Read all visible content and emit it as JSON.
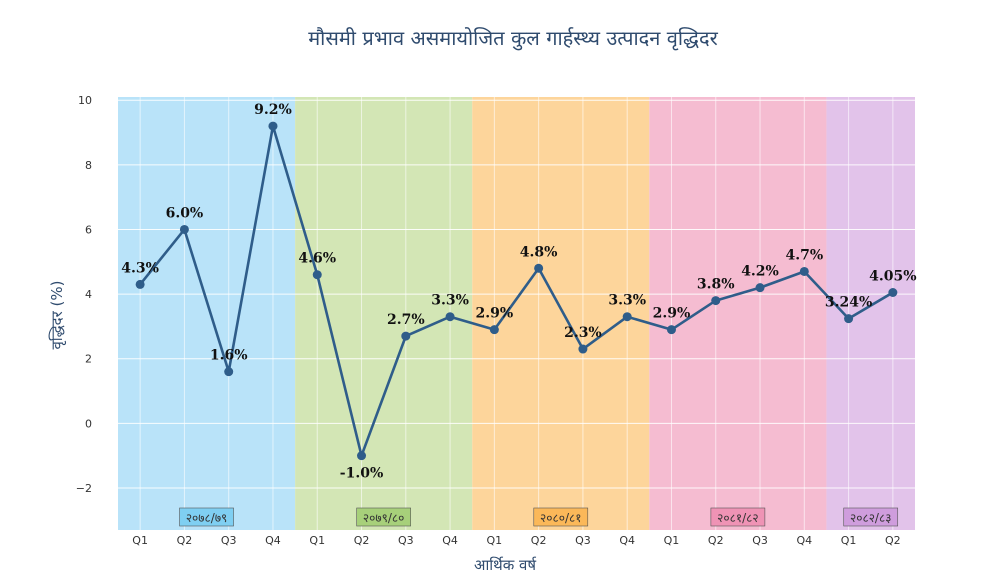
{
  "chart_data": {
    "type": "line",
    "title": "मौसमी प्रभाव असमायोजित कुल गार्हस्थ्य उत्पादन वृद्धिदर",
    "xlabel": "आर्थिक वर्ष",
    "ylabel": "वृद्धिदर (%)",
    "ylim": [
      -3.3,
      10.1
    ],
    "yticks": [
      -2,
      0,
      2,
      4,
      6,
      8,
      10
    ],
    "grid": true,
    "categories": [
      "Q1",
      "Q2",
      "Q3",
      "Q4",
      "Q1",
      "Q2",
      "Q3",
      "Q4",
      "Q1",
      "Q2",
      "Q3",
      "Q4",
      "Q1",
      "Q2",
      "Q3",
      "Q4",
      "Q1",
      "Q2"
    ],
    "series": [
      {
        "values": [
          4.3,
          6.0,
          1.6,
          9.2,
          4.6,
          -1.0,
          2.7,
          3.3,
          2.9,
          4.8,
          2.3,
          3.3,
          2.9,
          3.8,
          4.2,
          4.7,
          3.24,
          4.05
        ],
        "labels": [
          "4.3%",
          "6.0%",
          "1.6%",
          "9.2%",
          "4.6%",
          "-1.0%",
          "2.7%",
          "3.3%",
          "2.9%",
          "4.8%",
          "2.3%",
          "3.3%",
          "2.9%",
          "3.8%",
          "4.2%",
          "4.7%",
          "3.24%",
          "4.05%"
        ],
        "color": "#2f5d8a"
      }
    ],
    "fiscal_years": [
      {
        "label": "२०७८/७९",
        "start": 0,
        "end": 3,
        "bg": "#b9e3f9",
        "tag": "#7fcff2"
      },
      {
        "label": "२०७९/८०",
        "start": 4,
        "end": 7,
        "bg": "#d3e6b5",
        "tag": "#a7d07a"
      },
      {
        "label": "२०८०/८१",
        "start": 8,
        "end": 11,
        "bg": "#fdd59b",
        "tag": "#fbb859"
      },
      {
        "label": "२०८१/८२",
        "start": 12,
        "end": 15,
        "bg": "#f5bcd1",
        "tag": "#ef93b5"
      },
      {
        "label": "२०८२/८३",
        "start": 16,
        "end": 17,
        "bg": "#e2c3ea",
        "tag": "#cf9ddd"
      }
    ]
  }
}
